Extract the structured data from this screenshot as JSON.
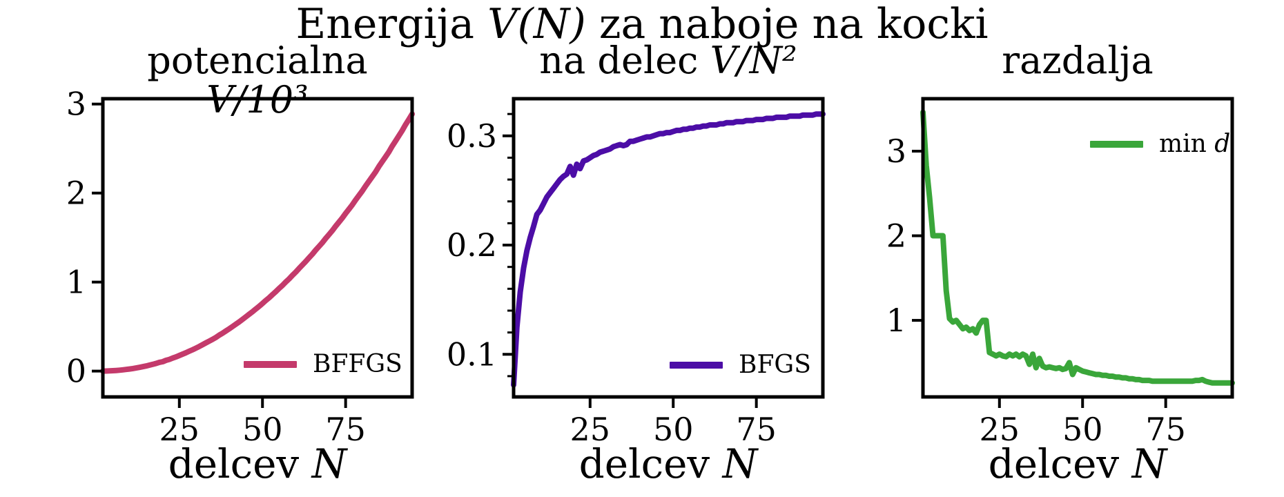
{
  "figure": {
    "title": {
      "pre": "Energija ",
      "math": "V(N)",
      "post": " za naboje na kocki"
    },
    "background": "#ffffff",
    "text_color": "#000000",
    "axis_color": "#000000"
  },
  "chart_data": [
    {
      "id": "potencialna",
      "type": "line",
      "title": {
        "pre": "potencialna ",
        "math": "V/10³",
        "post": ""
      },
      "xlabel": {
        "pre": "delcev ",
        "math": "N",
        "post": ""
      },
      "legend": {
        "pre": "BFFGS",
        "math": "",
        "position": "lower right"
      },
      "line_color": "#c43a6b",
      "xlim": [
        2,
        95
      ],
      "ylim": [
        -0.29,
        3.06
      ],
      "xticks": [
        25,
        50,
        75
      ],
      "xtick_labels": [
        "25",
        "50",
        "75"
      ],
      "yticks": [
        0,
        1,
        2,
        3
      ],
      "ytick_labels": [
        "0",
        "1",
        "2",
        "3"
      ],
      "yminor": [],
      "x": [
        2,
        3,
        4,
        5,
        6,
        7,
        8,
        9,
        10,
        11,
        12,
        13,
        14,
        15,
        16,
        17,
        18,
        19,
        20,
        21,
        22,
        23,
        24,
        25,
        26,
        27,
        28,
        29,
        30,
        31,
        32,
        33,
        34,
        35,
        36,
        37,
        38,
        39,
        40,
        41,
        42,
        43,
        44,
        45,
        46,
        47,
        48,
        49,
        50,
        51,
        52,
        53,
        54,
        55,
        56,
        57,
        58,
        59,
        60,
        61,
        62,
        63,
        64,
        65,
        66,
        67,
        68,
        69,
        70,
        71,
        72,
        73,
        74,
        75,
        76,
        77,
        78,
        79,
        80,
        81,
        82,
        83,
        84,
        85,
        86,
        87,
        88,
        89,
        90,
        91,
        92,
        93,
        94,
        95
      ],
      "y": [
        0.0003,
        0.0011,
        0.0025,
        0.0045,
        0.007,
        0.0101,
        0.0139,
        0.0185,
        0.0232,
        0.0288,
        0.0351,
        0.0419,
        0.0494,
        0.0576,
        0.0666,
        0.076,
        0.0859,
        0.0982,
        0.1056,
        0.1208,
        0.1307,
        0.1465,
        0.1601,
        0.175,
        0.1906,
        0.2063,
        0.2234,
        0.2405,
        0.2583,
        0.2768,
        0.297,
        0.3169,
        0.3376,
        0.3565,
        0.3784,
        0.4039,
        0.426,
        0.4502,
        0.4752,
        0.5009,
        0.5274,
        0.5529,
        0.5808,
        0.6095,
        0.639,
        0.6671,
        0.6981,
        0.7275,
        0.76,
        0.7933,
        0.8247,
        0.8596,
        0.8922,
        0.9287,
        0.9627,
        1.0007,
        1.0361,
        1.0756,
        1.1124,
        1.1533,
        1.1916,
        1.2304,
        1.2736,
        1.314,
        1.3591,
        1.4006,
        1.4427,
        1.4902,
        1.5337,
        1.5778,
        1.6278,
        1.6733,
        1.7195,
        1.7719,
        1.8194,
        1.8677,
        1.9225,
        1.9725,
        2.0224,
        2.0798,
        2.1317,
        2.1844,
        2.2368,
        2.2976,
        2.3518,
        2.4068,
        2.4624,
        2.5265,
        2.5838,
        2.6418,
        2.7004,
        2.7674,
        2.8269,
        2.888
      ]
    },
    {
      "id": "na-delec",
      "type": "line",
      "title": {
        "pre": "na delec ",
        "math": "V/N²",
        "post": ""
      },
      "xlabel": {
        "pre": "delcev ",
        "math": "N",
        "post": ""
      },
      "legend": {
        "pre": "BFGS",
        "math": "",
        "position": "lower right"
      },
      "line_color": "#4c0da6",
      "xlim": [
        2,
        95
      ],
      "ylim": [
        0.061,
        0.334
      ],
      "xticks": [
        25,
        50,
        75
      ],
      "xtick_labels": [
        "25",
        "50",
        "75"
      ],
      "yticks": [
        0.1,
        0.2,
        0.3
      ],
      "ytick_labels": [
        "0.1",
        "0.2",
        "0.3"
      ],
      "yminor": [
        0.08,
        0.12,
        0.14,
        0.16,
        0.18,
        0.22,
        0.24,
        0.26,
        0.28,
        0.32
      ],
      "x": [
        2,
        3,
        4,
        5,
        6,
        7,
        8,
        9,
        10,
        11,
        12,
        13,
        14,
        15,
        16,
        17,
        18,
        19,
        20,
        21,
        22,
        23,
        24,
        25,
        26,
        27,
        28,
        29,
        30,
        31,
        32,
        33,
        34,
        35,
        36,
        37,
        38,
        39,
        40,
        41,
        42,
        43,
        44,
        45,
        46,
        47,
        48,
        49,
        50,
        51,
        52,
        53,
        54,
        55,
        56,
        57,
        58,
        59,
        60,
        61,
        62,
        63,
        64,
        65,
        66,
        67,
        68,
        69,
        70,
        71,
        72,
        73,
        74,
        75,
        76,
        77,
        78,
        79,
        80,
        81,
        82,
        83,
        84,
        85,
        86,
        87,
        88,
        89,
        90,
        91,
        92,
        93,
        94,
        95
      ],
      "y": [
        0.072,
        0.125,
        0.157,
        0.179,
        0.195,
        0.207,
        0.217,
        0.228,
        0.232,
        0.238,
        0.244,
        0.248,
        0.252,
        0.256,
        0.26,
        0.263,
        0.265,
        0.272,
        0.264,
        0.274,
        0.27,
        0.277,
        0.278,
        0.28,
        0.282,
        0.283,
        0.285,
        0.286,
        0.287,
        0.288,
        0.29,
        0.291,
        0.292,
        0.291,
        0.292,
        0.295,
        0.295,
        0.296,
        0.297,
        0.298,
        0.299,
        0.299,
        0.3,
        0.301,
        0.302,
        0.302,
        0.303,
        0.303,
        0.304,
        0.305,
        0.305,
        0.306,
        0.306,
        0.307,
        0.307,
        0.308,
        0.308,
        0.309,
        0.309,
        0.31,
        0.31,
        0.31,
        0.311,
        0.311,
        0.312,
        0.312,
        0.312,
        0.313,
        0.313,
        0.313,
        0.314,
        0.314,
        0.314,
        0.315,
        0.315,
        0.315,
        0.316,
        0.316,
        0.316,
        0.317,
        0.317,
        0.317,
        0.317,
        0.318,
        0.318,
        0.318,
        0.318,
        0.319,
        0.319,
        0.319,
        0.319,
        0.32,
        0.32,
        0.32
      ]
    },
    {
      "id": "razdalja",
      "type": "line",
      "title": {
        "pre": "razdalja",
        "math": "",
        "post": ""
      },
      "xlabel": {
        "pre": "delcev ",
        "math": "N",
        "post": ""
      },
      "legend": {
        "pre": "min ",
        "math": "d",
        "position": "upper right"
      },
      "line_color": "#3aa63a",
      "xlim": [
        2,
        95
      ],
      "ylim": [
        0.095,
        3.62
      ],
      "xticks": [
        25,
        50,
        75
      ],
      "xtick_labels": [
        "25",
        "50",
        "75"
      ],
      "yticks": [
        1,
        2,
        3
      ],
      "ytick_labels": [
        "1",
        "2",
        "3"
      ],
      "yminor": [],
      "x": [
        2,
        3,
        4,
        5,
        6,
        7,
        8,
        9,
        10,
        11,
        12,
        13,
        14,
        15,
        16,
        17,
        18,
        19,
        20,
        21,
        22,
        23,
        24,
        25,
        26,
        27,
        28,
        29,
        30,
        31,
        32,
        33,
        34,
        35,
        36,
        37,
        38,
        39,
        40,
        41,
        42,
        43,
        44,
        45,
        46,
        47,
        48,
        49,
        50,
        51,
        52,
        53,
        54,
        55,
        56,
        57,
        58,
        59,
        60,
        61,
        62,
        63,
        64,
        65,
        66,
        67,
        68,
        69,
        70,
        71,
        72,
        73,
        74,
        75,
        76,
        77,
        78,
        79,
        80,
        81,
        82,
        83,
        84,
        85,
        86,
        87,
        88,
        89,
        90,
        91,
        92,
        93,
        94,
        95
      ],
      "y": [
        3.46,
        2.83,
        2.45,
        2.0,
        2.0,
        2.0,
        2.0,
        1.35,
        1.02,
        0.98,
        1.0,
        0.95,
        0.9,
        0.92,
        0.88,
        0.9,
        0.85,
        0.95,
        1.0,
        1.0,
        0.62,
        0.6,
        0.58,
        0.6,
        0.58,
        0.57,
        0.6,
        0.58,
        0.6,
        0.57,
        0.6,
        0.58,
        0.48,
        0.6,
        0.44,
        0.55,
        0.46,
        0.44,
        0.45,
        0.44,
        0.43,
        0.44,
        0.42,
        0.43,
        0.5,
        0.36,
        0.44,
        0.42,
        0.4,
        0.39,
        0.38,
        0.37,
        0.36,
        0.36,
        0.35,
        0.35,
        0.34,
        0.34,
        0.33,
        0.33,
        0.32,
        0.32,
        0.31,
        0.31,
        0.3,
        0.3,
        0.29,
        0.29,
        0.29,
        0.28,
        0.28,
        0.28,
        0.28,
        0.28,
        0.28,
        0.28,
        0.28,
        0.28,
        0.28,
        0.28,
        0.28,
        0.28,
        0.29,
        0.29,
        0.3,
        0.28,
        0.27,
        0.26,
        0.26,
        0.26,
        0.26,
        0.26,
        0.26,
        0.26
      ]
    }
  ]
}
